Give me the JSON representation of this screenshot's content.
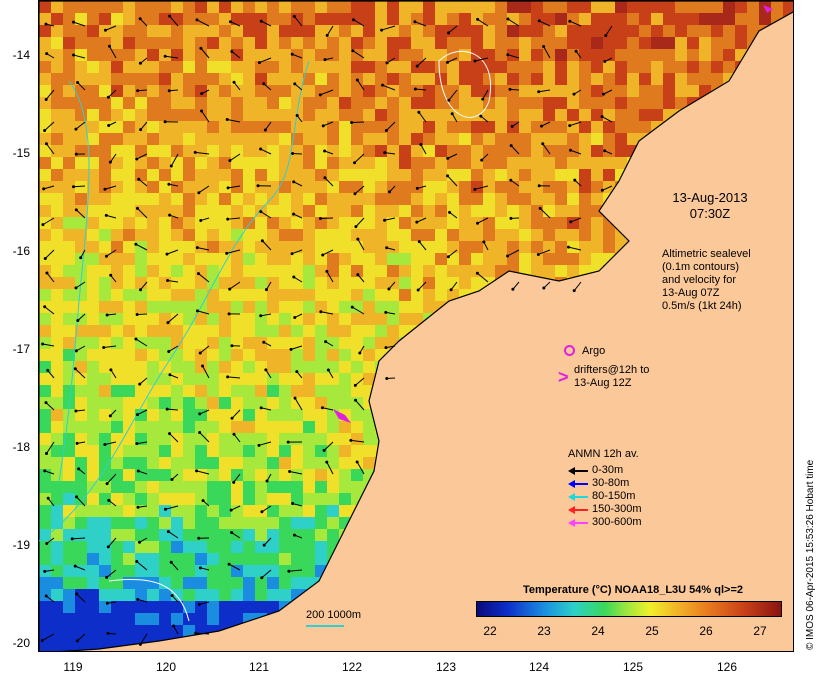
{
  "map": {
    "date_line1": "13-Aug-2013",
    "date_line2": "07:30Z",
    "altimetry_lines": [
      "Altimetric sealevel",
      "(0.1m contours)",
      "and velocity for",
      "13-Aug 07Z",
      "0.5m/s (1kt 24h)"
    ],
    "argo_label": "Argo",
    "drifters_lines": [
      "drifters@12h to",
      "13-Aug 12Z"
    ],
    "anmn_title": "ANMN 12h av.",
    "anmn_items": [
      {
        "label": "0-30m",
        "color": "#000000"
      },
      {
        "label": "30-80m",
        "color": "#0000ff"
      },
      {
        "label": "80-150m",
        "color": "#20d8d8"
      },
      {
        "label": "150-300m",
        "color": "#ff2020"
      },
      {
        "label": "300-600m",
        "color": "#ff40ff"
      }
    ],
    "scale_label": "200  1000m",
    "colorbar_title": "Temperature (°C) NOAA18_L3U 54% ql>=2",
    "colorbar_ticks": [
      "22",
      "23",
      "24",
      "25",
      "26",
      "27"
    ],
    "lat_ticks": [
      "-14",
      "-15",
      "-16",
      "-17",
      "-18",
      "-19",
      "-20"
    ],
    "lon_ticks": [
      "119",
      "120",
      "121",
      "122",
      "123",
      "124",
      "125",
      "126"
    ],
    "credit": "© IMOS 06-Apr-2015 15:53:26 Hobart time",
    "colors": {
      "land": "#fbc89a",
      "argo": "#e020e0",
      "contour": "#30d0d0"
    }
  }
}
